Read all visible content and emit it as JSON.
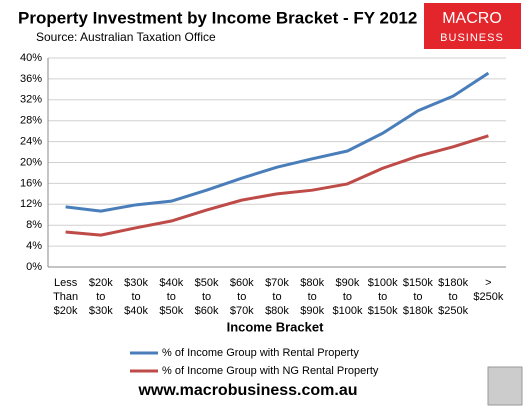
{
  "chart_data": {
    "type": "line",
    "title": "Property Investment by Income Bracket - FY 2012",
    "subtitle": "Source: Australian Taxation Office",
    "logo": [
      "MACRO",
      "BUSINESS"
    ],
    "footer": "www.macrobusiness.com.au",
    "x_label": "Income Bracket",
    "categories": [
      [
        "Less",
        "Than",
        "$20k"
      ],
      [
        "$20k",
        "to",
        "$30k"
      ],
      [
        "$30k",
        "to",
        "$40k"
      ],
      [
        "$40k",
        "to",
        "$50k"
      ],
      [
        "$50k",
        "to",
        "$60k"
      ],
      [
        "$60k",
        "to",
        "$70k"
      ],
      [
        "$70k",
        "to",
        "$80k"
      ],
      [
        "$80k",
        "to",
        "$90k"
      ],
      [
        "$90k",
        "to",
        "$100k"
      ],
      [
        "$100k",
        "to",
        "$150k"
      ],
      [
        "$150k",
        "to",
        "$180k"
      ],
      [
        "$180k",
        "to",
        "$250k"
      ],
      [
        ">",
        "$250k"
      ]
    ],
    "series": [
      {
        "name": "% of Income Group with Rental Property",
        "color": "#4a7ebb",
        "values": [
          11.5,
          10.7,
          11.9,
          12.6,
          14.7,
          17.0,
          19.1,
          20.7,
          22.2,
          25.6,
          29.9,
          32.7,
          37.1
        ]
      },
      {
        "name": "% of Income Group with NG Rental Property",
        "color": "#be4b48",
        "values": [
          6.7,
          6.1,
          7.5,
          8.8,
          10.9,
          12.8,
          14.0,
          14.7,
          15.9,
          18.9,
          21.2,
          23.0,
          25.1
        ]
      }
    ],
    "ylim": [
      0,
      40
    ],
    "yticks": [
      {
        "value": 0,
        "label": "0%"
      },
      {
        "value": 4,
        "label": "4%"
      },
      {
        "value": 8,
        "label": "8%"
      },
      {
        "value": 12,
        "label": "12%"
      },
      {
        "value": 16,
        "label": "16%"
      },
      {
        "value": 20,
        "label": "20%"
      },
      {
        "value": 24,
        "label": "24%"
      },
      {
        "value": 28,
        "label": "28%"
      },
      {
        "value": 32,
        "label": "32%"
      },
      {
        "value": 36,
        "label": "36%"
      },
      {
        "value": 40,
        "label": "40%"
      }
    ],
    "grid": true
  }
}
